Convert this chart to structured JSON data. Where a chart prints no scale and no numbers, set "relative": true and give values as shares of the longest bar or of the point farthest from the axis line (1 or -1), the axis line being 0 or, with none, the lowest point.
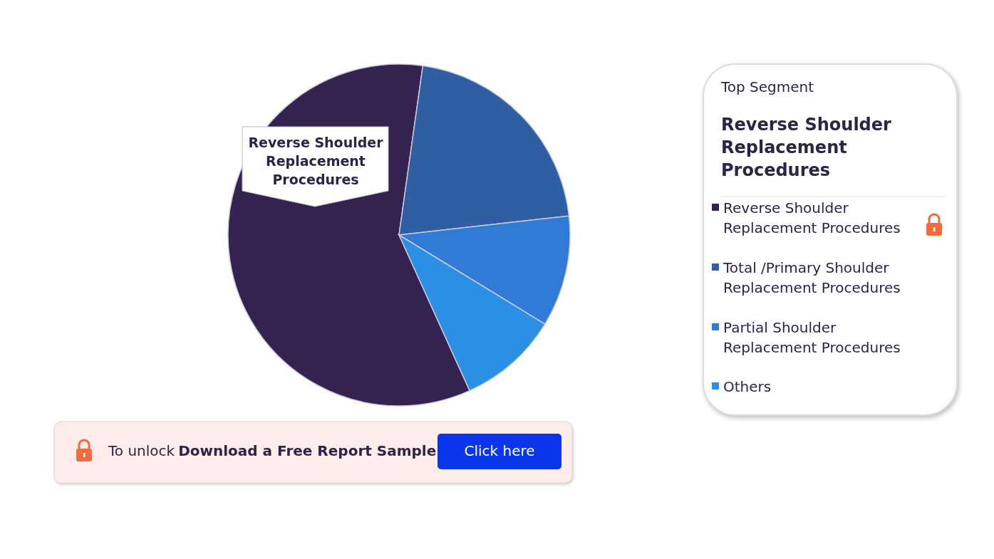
{
  "chart_data": {
    "type": "pie",
    "relative": true,
    "categories": [
      "Reverse Shoulder Replacement Procedures",
      "Total /Primary Shoulder Replacement Procedures",
      "Partial Shoulder Replacement Procedures",
      "Others"
    ],
    "values": [
      59,
      21,
      10.5,
      9.5
    ],
    "colors": [
      "#352250",
      "#2f5ea3",
      "#2f7bd6",
      "#2b90e3"
    ],
    "legend_title": "Top Segment",
    "legend": "right",
    "annotations": [
      "To unlock",
      "Download a Free Report Sample",
      "Click here"
    ]
  }
}
